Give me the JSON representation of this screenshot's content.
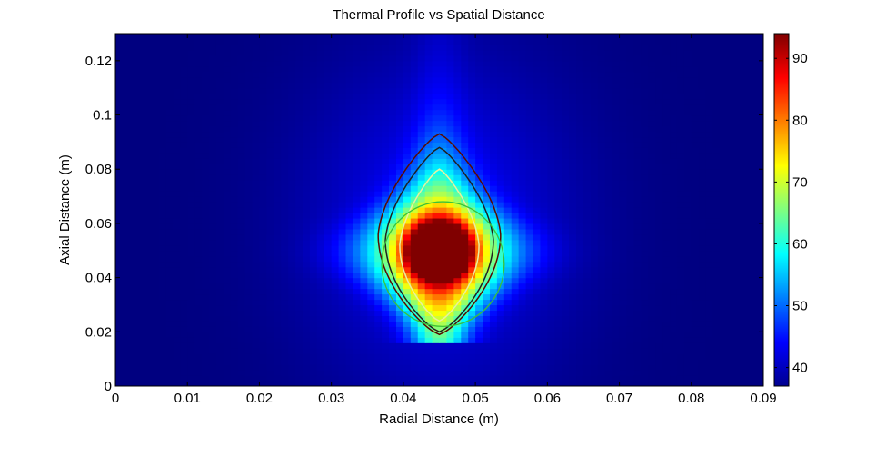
{
  "chart_data": {
    "type": "heatmap",
    "title": "Thermal Profile vs Spatial Distance",
    "xlabel": "Radial Distance (m)",
    "ylabel": "Axial Distance (m)",
    "xlim": [
      0,
      0.09
    ],
    "ylim": [
      0,
      0.13
    ],
    "x_ticks": [
      "0",
      "0.01",
      "0.02",
      "0.03",
      "0.04",
      "0.05",
      "0.06",
      "0.07",
      "0.08",
      "0.09"
    ],
    "y_ticks": [
      "0",
      "0.02",
      "0.04",
      "0.06",
      "0.08",
      "0.1",
      "0.12"
    ],
    "colorbar": {
      "colormap": "jet",
      "range": [
        37,
        94
      ],
      "ticks": [
        "40",
        "50",
        "60",
        "70",
        "80",
        "90"
      ]
    },
    "field": {
      "ambient": 37,
      "hotspots": [
        {
          "x": 0.0435,
          "y": 0.05,
          "peak": 94
        },
        {
          "x": 0.0465,
          "y": 0.05,
          "peak": 94
        }
      ],
      "center_x": 0.045,
      "base_y": 0.02,
      "top_y": 0.09
    },
    "contours": [
      {
        "color": "#5a0a00",
        "x_halfwidth": 0.0085,
        "y_range": [
          0.019,
          0.093
        ]
      },
      {
        "color": "#202020",
        "x_halfwidth": 0.0075,
        "y_range": [
          0.02,
          0.088
        ]
      },
      {
        "color": "#e8f0a0",
        "x_halfwidth": 0.0055,
        "y_range": [
          0.024,
          0.08
        ]
      }
    ],
    "circle": {
      "color": "#3ac23a",
      "center": [
        0.0455,
        0.045
      ],
      "radius_x": 0.0085,
      "radius_y": 0.023
    },
    "grid": false
  }
}
